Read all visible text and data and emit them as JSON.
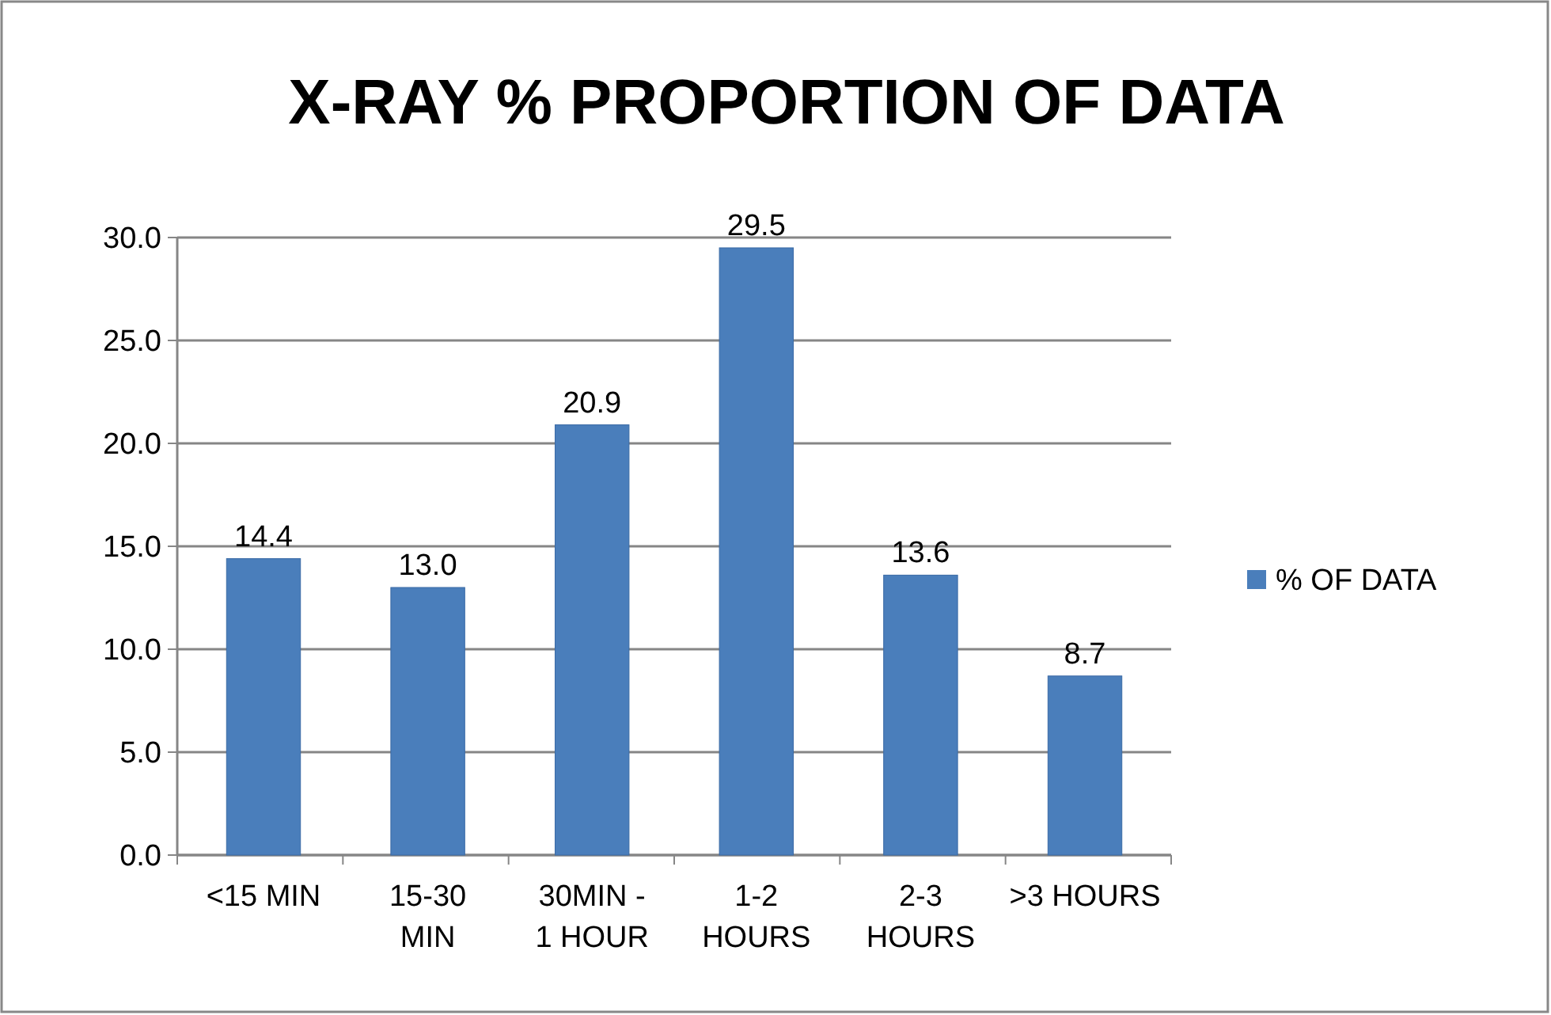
{
  "chart_data": {
    "type": "bar",
    "title": "X-RAY % PROPORTION OF DATA",
    "categories": [
      "<15 MIN",
      "15-30 MIN",
      "30MIN - 1 HOUR",
      "1-2 HOURS",
      "2-3 HOURS",
      ">3 HOURS"
    ],
    "series": [
      {
        "name": "% OF DATA",
        "color": "#4a7ebb",
        "values": [
          14.4,
          13.0,
          20.9,
          29.5,
          13.6,
          8.7
        ],
        "value_labels": [
          "14.4",
          "13.0",
          "20.9",
          "29.5",
          "13.6",
          "8.7"
        ]
      }
    ],
    "ylim": [
      0,
      30
    ],
    "yticks": [
      {
        "value": 0,
        "label": "0.0"
      },
      {
        "value": 5,
        "label": "5.0"
      },
      {
        "value": 10,
        "label": "10.0"
      },
      {
        "value": 15,
        "label": "15.0"
      },
      {
        "value": 20,
        "label": "20.0"
      },
      {
        "value": 25,
        "label": "25.0"
      },
      {
        "value": 30,
        "label": "30.0"
      }
    ],
    "grid": "y",
    "legend": "right"
  }
}
